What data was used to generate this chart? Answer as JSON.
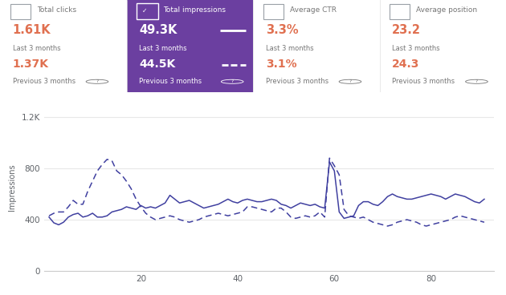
{
  "title_panel": {
    "col1": {
      "checkbox": false,
      "label": "Total clicks",
      "value1": "1.61K",
      "label1": "Last 3 months",
      "value2": "1.37K",
      "label2": "Previous 3 months"
    },
    "col2": {
      "checkbox": true,
      "label": "Total impressions",
      "value1": "49.3K",
      "label1": "Last 3 months",
      "value2": "44.5K",
      "label2": "Previous 3 months",
      "bg_color": "#6b3fa0"
    },
    "col3": {
      "checkbox": false,
      "label": "Average CTR",
      "value1": "3.3%",
      "label1": "Last 3 months",
      "value2": "3.1%",
      "label2": "Previous 3 months"
    },
    "col4": {
      "checkbox": false,
      "label": "Average position",
      "value1": "23.2",
      "label1": "Last 3 months",
      "value2": "24.3",
      "label2": "Previous 3 months"
    }
  },
  "chart": {
    "ylabel": "Impressions",
    "yticks": [
      0,
      400,
      800,
      1200
    ],
    "ytick_labels": [
      "0",
      "400",
      "800",
      "1.2K"
    ],
    "xticks": [
      20,
      40,
      60,
      80
    ],
    "ylim": [
      0,
      1300
    ],
    "xlim": [
      0,
      93
    ],
    "line_color": "#4040a0",
    "bg_color": "#ffffff",
    "grid_color": "#e8e8e8",
    "solid_line": [
      420,
      375,
      360,
      380,
      420,
      440,
      450,
      420,
      430,
      450,
      420,
      420,
      430,
      460,
      470,
      480,
      500,
      490,
      480,
      510,
      490,
      500,
      490,
      510,
      530,
      590,
      560,
      530,
      540,
      550,
      530,
      510,
      490,
      500,
      510,
      520,
      540,
      560,
      540,
      530,
      550,
      560,
      550,
      540,
      540,
      550,
      560,
      550,
      520,
      510,
      490,
      510,
      530,
      520,
      510,
      520,
      500,
      490,
      850,
      780,
      460,
      410,
      420,
      430,
      510,
      540,
      540,
      520,
      510,
      540,
      580,
      600,
      580,
      570,
      560,
      560,
      570,
      580,
      590,
      600,
      590,
      580,
      560,
      580,
      600,
      590,
      580,
      560,
      540,
      530,
      560
    ],
    "dashed_line": [
      430,
      450,
      460,
      460,
      500,
      550,
      520,
      520,
      620,
      700,
      780,
      830,
      870,
      860,
      780,
      750,
      700,
      640,
      560,
      500,
      450,
      420,
      400,
      410,
      420,
      430,
      420,
      400,
      390,
      380,
      390,
      400,
      420,
      430,
      440,
      450,
      440,
      430,
      440,
      450,
      460,
      500,
      500,
      490,
      480,
      470,
      460,
      490,
      490,
      460,
      420,
      410,
      420,
      430,
      420,
      430,
      460,
      420,
      880,
      820,
      750,
      480,
      430,
      420,
      410,
      420,
      400,
      380,
      370,
      360,
      350,
      360,
      380,
      390,
      400,
      390,
      380,
      360,
      350,
      360,
      370,
      380,
      390,
      400,
      420,
      430,
      420,
      410,
      400,
      390,
      380
    ]
  },
  "colors": {
    "header_bg": "#ffffff",
    "selected_bg": "#6b3fa0",
    "selected_text": "#ffffff",
    "normal_text": "#757575",
    "value_text_normal": "#e07050",
    "value_text_dark": "#202124",
    "selected_value": "#ffffff",
    "checkbox_border": "#9aa0a6",
    "divider": "#e0e0e0"
  }
}
